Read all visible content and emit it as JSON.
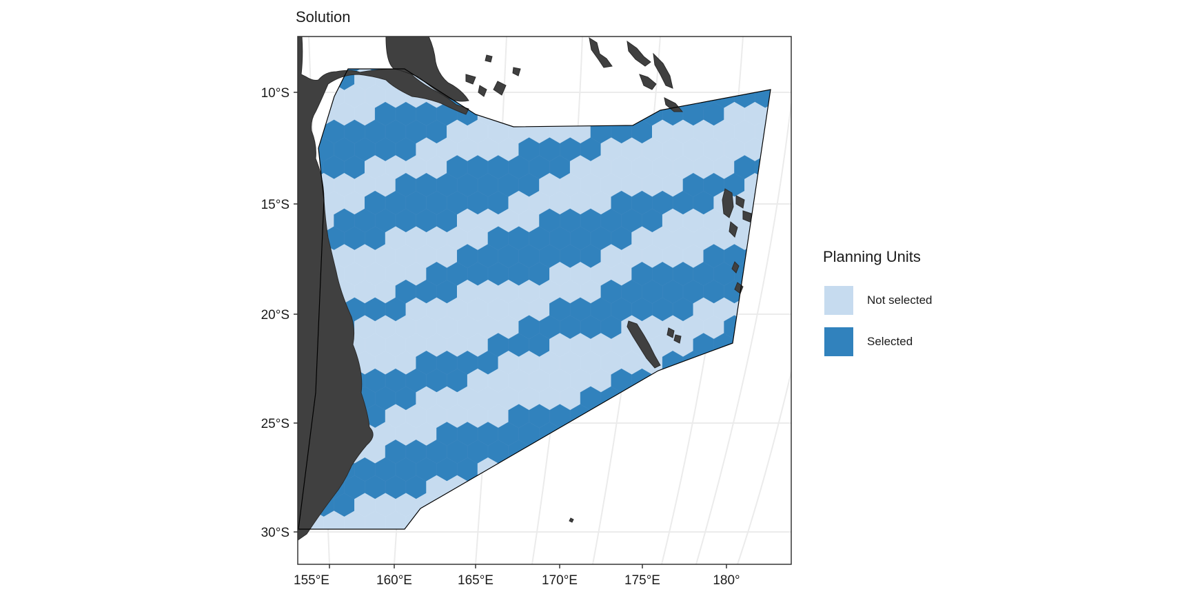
{
  "title": "Solution",
  "map": {
    "x_ticks": [
      "155°E",
      "160°E",
      "165°E",
      "170°E",
      "175°E",
      "180°"
    ],
    "y_ticks": [
      "10°S",
      "15°S",
      "20°S",
      "25°S",
      "30°S"
    ],
    "colors": {
      "not_selected": "#c6dbef",
      "selected": "#3182bd",
      "land": "#404040",
      "grid": "#ebebeb"
    }
  },
  "legend": {
    "title": "Planning Units",
    "items": [
      {
        "label": "Not selected",
        "color": "#c6dbef"
      },
      {
        "label": "Selected",
        "color": "#3182bd"
      }
    ]
  }
}
